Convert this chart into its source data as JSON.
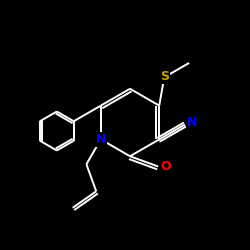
{
  "bg_color": "#000000",
  "bond_color": "#ffffff",
  "atom_colors": {
    "S": "#c8a000",
    "N": "#0000ff",
    "O": "#ff0000",
    "C": "#ffffff"
  },
  "figsize": [
    2.5,
    2.5
  ],
  "dpi": 100
}
